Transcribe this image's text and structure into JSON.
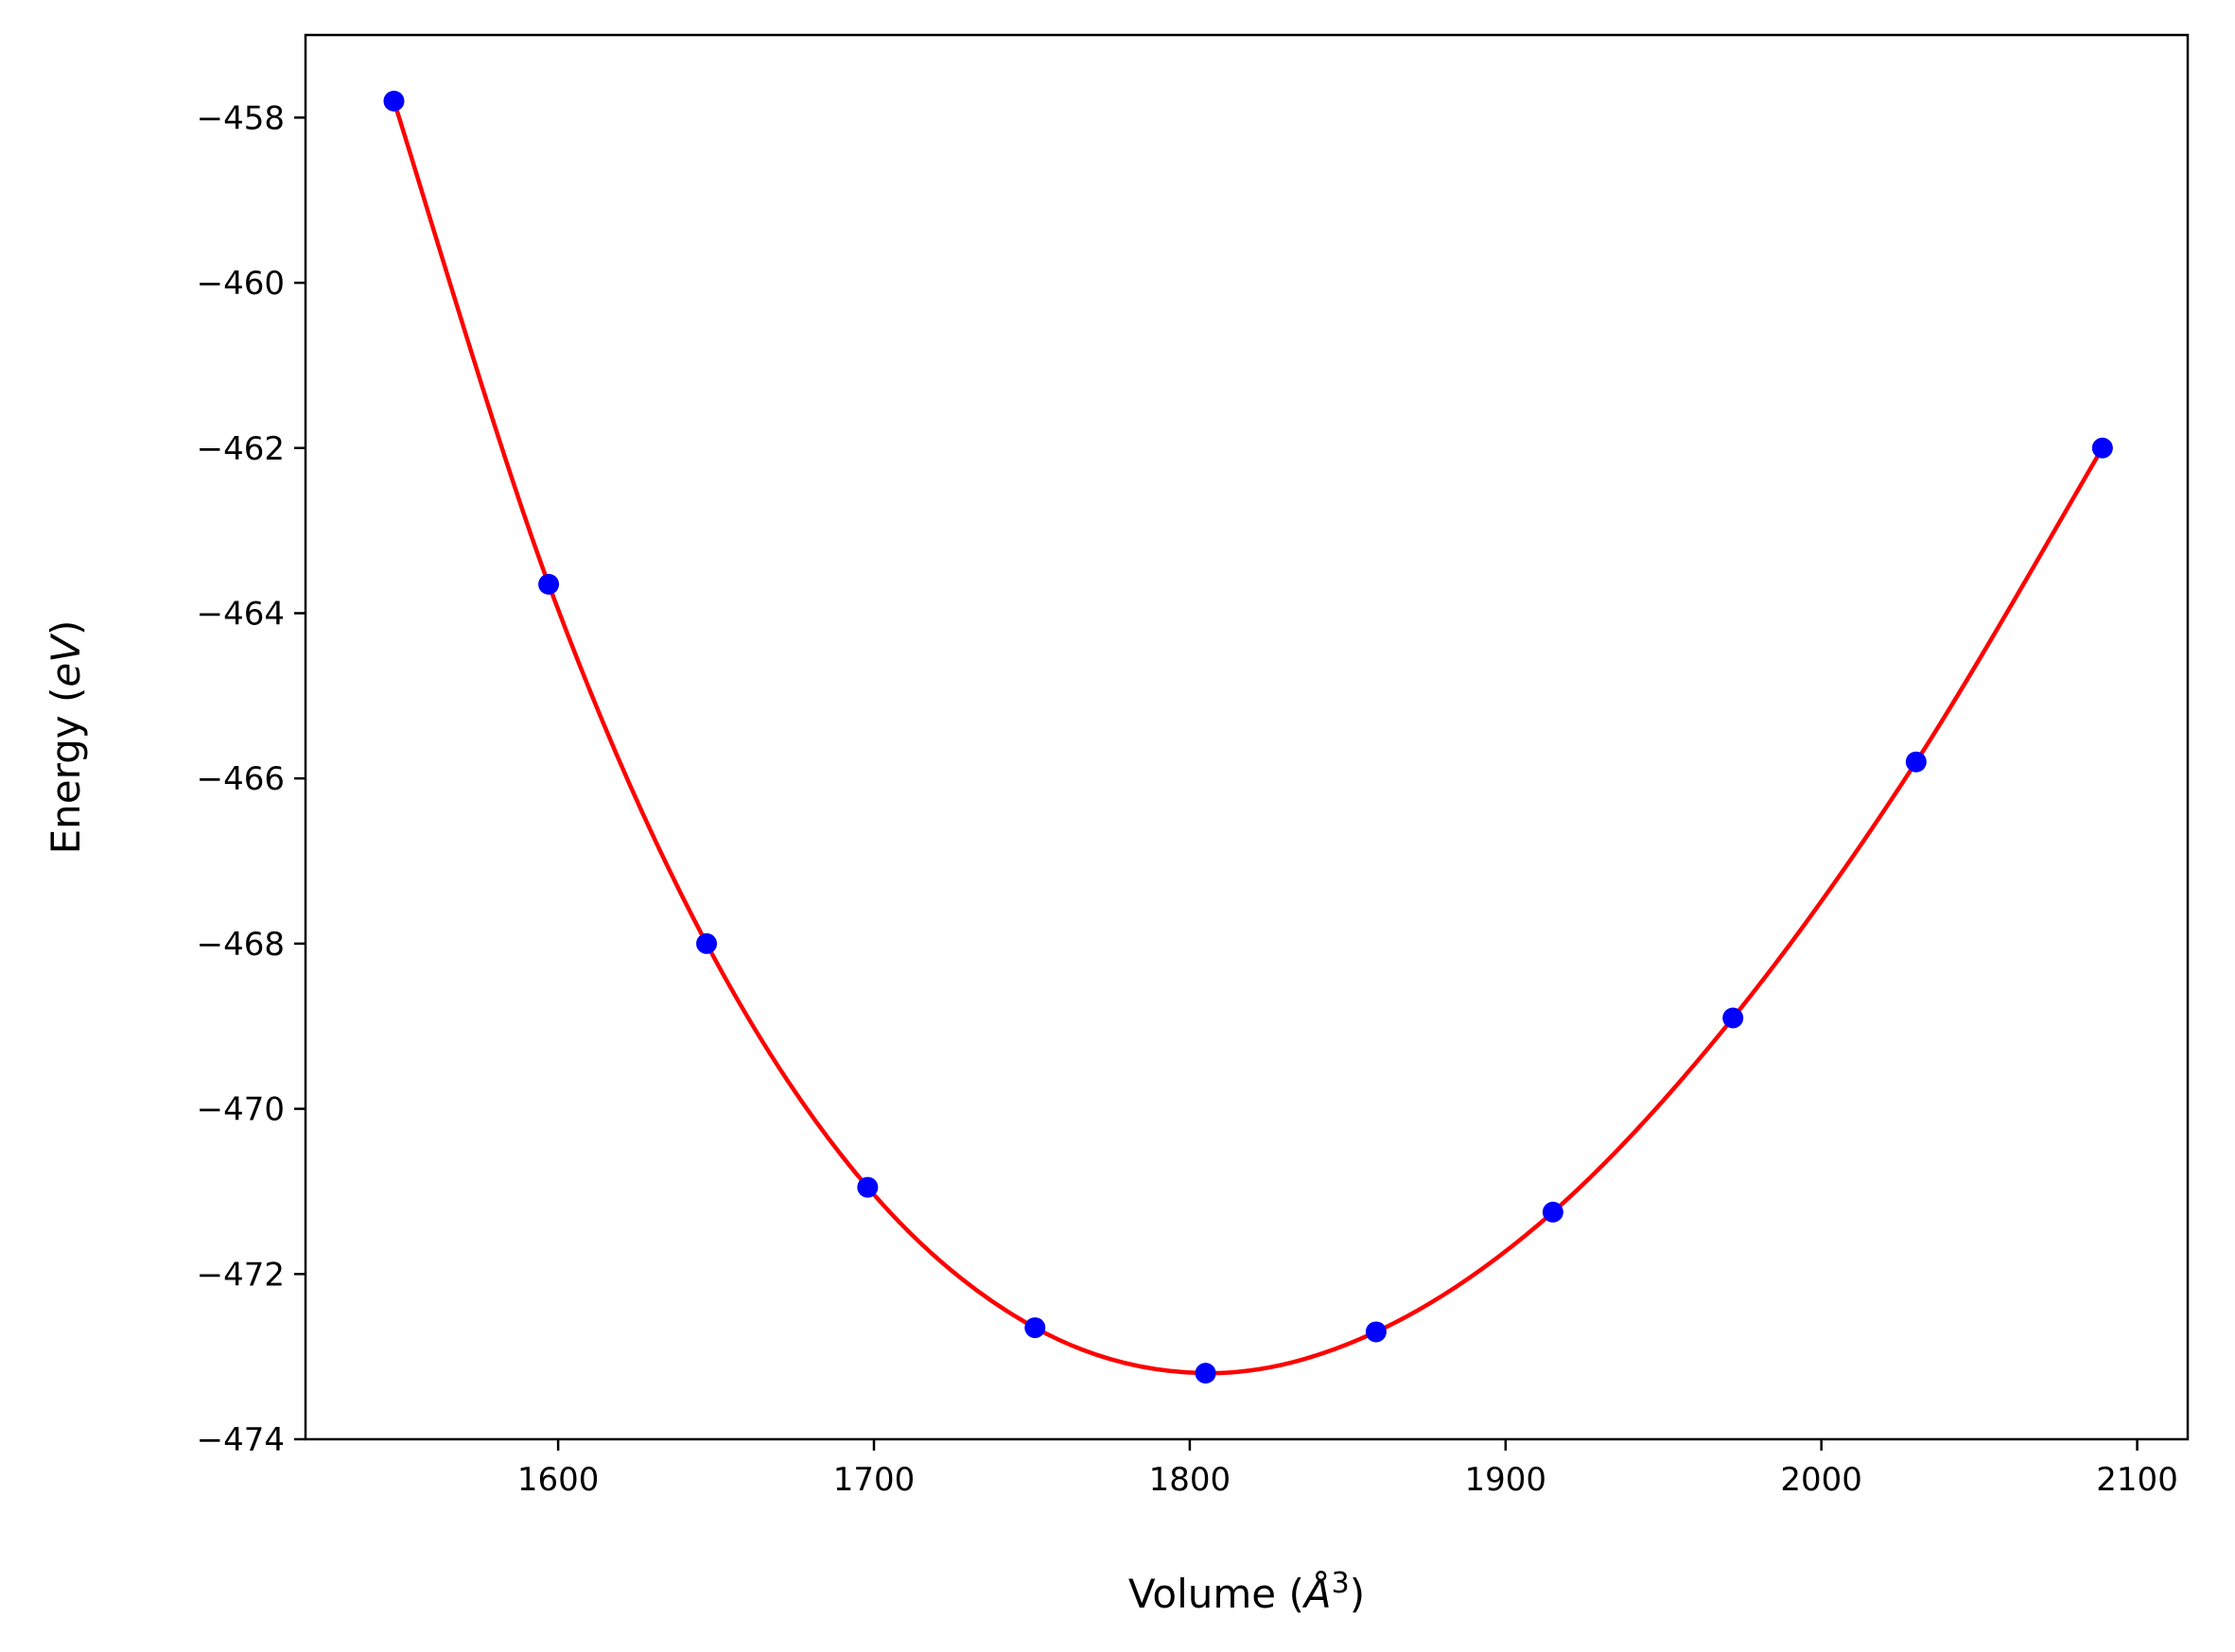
{
  "chart_data": {
    "type": "line",
    "xlabel": "Volume (Å³)",
    "ylabel": "Energy (eV)",
    "xlabel_parts": {
      "prefix": "Volume (",
      "unit": "Å",
      "sup": "3",
      "suffix": ")"
    },
    "ylabel_parts": {
      "prefix": "Energy (",
      "unit": "eV",
      "suffix": ")"
    },
    "xlim": [
      1520,
      2116
    ],
    "ylim": [
      -474,
      -457
    ],
    "x_ticks": [
      1600,
      1700,
      1800,
      1900,
      2000,
      2100
    ],
    "y_ticks": [
      -474,
      -472,
      -470,
      -468,
      -466,
      -464,
      -462,
      -460,
      -458
    ],
    "x_tick_labels": [
      "1600",
      "1700",
      "1800",
      "1900",
      "2000",
      "2100"
    ],
    "y_tick_labels": [
      "−474",
      "−472",
      "−470",
      "−468",
      "−466",
      "−464",
      "−462",
      "−460",
      "−458"
    ],
    "grid": false,
    "series": [
      {
        "kind": "points",
        "color": "#0000ff",
        "x": [
          1548,
          1597,
          1647,
          1698,
          1751,
          1805,
          1859,
          1915,
          1972,
          2030,
          2089
        ],
        "y": [
          -457.8,
          -463.65,
          -468.0,
          -470.95,
          -472.65,
          -473.2,
          -472.7,
          -471.25,
          -468.9,
          -465.8,
          -462.0
        ]
      },
      {
        "kind": "fit-curve",
        "color": "#ff0000",
        "x": [
          1548,
          1597,
          1647,
          1698,
          1751,
          1805,
          1859,
          1915,
          1972,
          2030,
          2089
        ],
        "y": [
          -457.8,
          -463.65,
          -468.0,
          -470.95,
          -472.65,
          -473.2,
          -472.7,
          -471.25,
          -468.9,
          -465.8,
          -462.0
        ]
      }
    ]
  }
}
